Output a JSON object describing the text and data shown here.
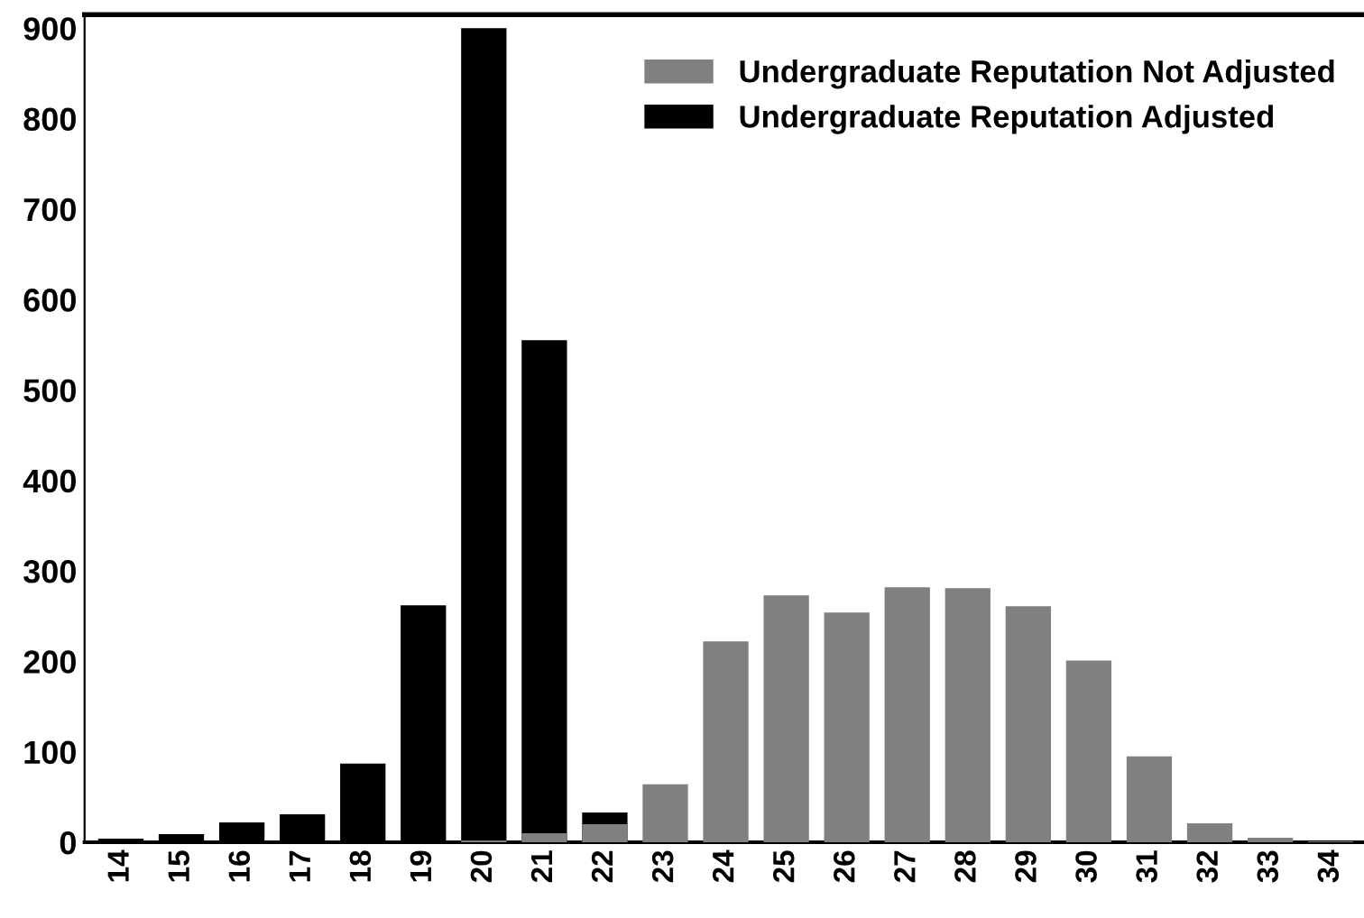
{
  "chart_data": {
    "type": "bar",
    "categories": [
      "14",
      "15",
      "16",
      "17",
      "18",
      "19",
      "20",
      "21",
      "22",
      "23",
      "24",
      "25",
      "26",
      "27",
      "28",
      "29",
      "30",
      "31",
      "32",
      "33",
      "34"
    ],
    "series": [
      {
        "name": "Undergraduate Reputation Not Adjusted",
        "color": "#808080",
        "values": [
          null,
          null,
          null,
          null,
          null,
          null,
          2,
          10,
          20,
          64,
          222,
          273,
          254,
          282,
          281,
          261,
          201,
          95,
          21,
          5,
          1
        ]
      },
      {
        "name": "Undergraduate Reputation Adjusted",
        "color": "#000000",
        "values": [
          4,
          9,
          22,
          31,
          87,
          262,
          900,
          555,
          33,
          null,
          null,
          null,
          null,
          null,
          null,
          null,
          null,
          null,
          null,
          null,
          null
        ]
      }
    ],
    "ylim": [
      0,
      915
    ],
    "yticks": [
      0,
      100,
      200,
      300,
      400,
      500,
      600,
      700,
      800,
      900
    ],
    "grid": false,
    "legend": "top right"
  }
}
